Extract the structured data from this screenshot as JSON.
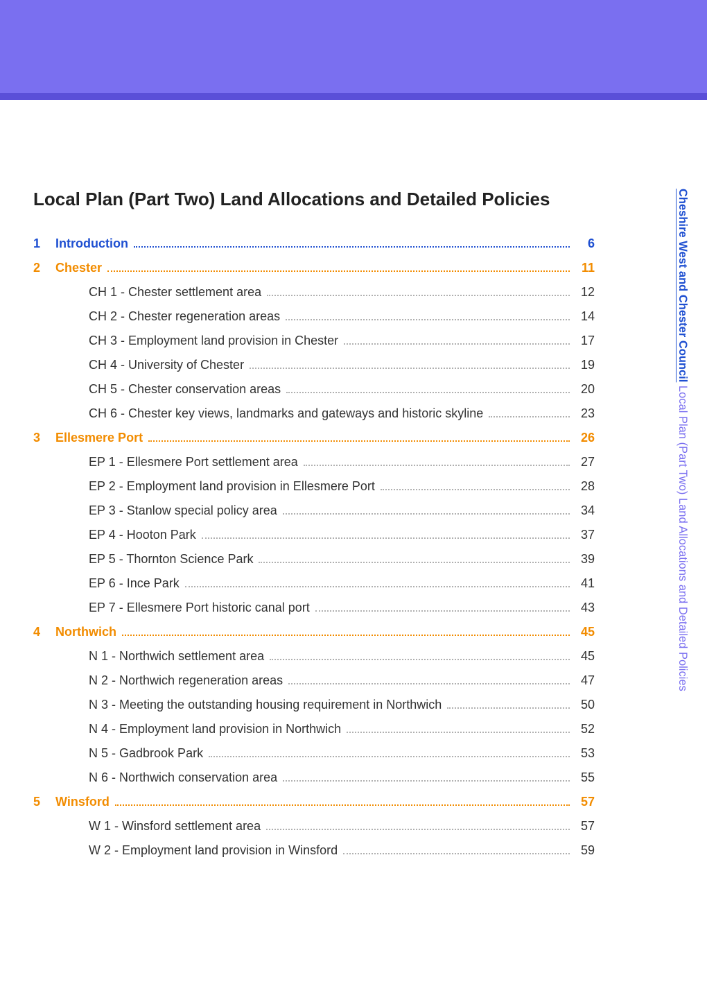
{
  "colors": {
    "header_bg": "#7a6ff0",
    "header_border": "#5a4fd8",
    "orange": "#f28c00",
    "blue": "#1e4fd1",
    "purple_text": "#7a6ff0",
    "body_text": "#333333"
  },
  "side_text": {
    "part1": "Cheshire West and Chester Council",
    "part2": " Local Plan (Part Two) Land Allocations and Detailed Policies"
  },
  "doc_title": "Local Plan (Part Two) Land Allocations and Detailed Policies",
  "toc": [
    {
      "type": "section",
      "style": "intro",
      "num": "1",
      "label": "Introduction",
      "page": "6"
    },
    {
      "type": "section",
      "num": "2",
      "label": "Chester",
      "page": "11"
    },
    {
      "type": "sub",
      "label": "CH 1 - Chester settlement area",
      "page": "12"
    },
    {
      "type": "sub",
      "label": "CH 2 - Chester regeneration areas",
      "page": "14"
    },
    {
      "type": "sub",
      "label": "CH 3 - Employment land provision in Chester",
      "page": "17"
    },
    {
      "type": "sub",
      "label": "CH 4 - University of Chester",
      "page": "19"
    },
    {
      "type": "sub",
      "label": "CH 5 - Chester conservation areas",
      "page": "20"
    },
    {
      "type": "sub",
      "label": "CH 6 - Chester key views, landmarks and gateways and historic skyline",
      "page": "23"
    },
    {
      "type": "section",
      "num": "3",
      "label": "Ellesmere Port",
      "page": "26"
    },
    {
      "type": "sub",
      "label": "EP 1 - Ellesmere Port settlement area",
      "page": "27"
    },
    {
      "type": "sub",
      "label": "EP 2 - Employment land provision in Ellesmere Port",
      "page": "28"
    },
    {
      "type": "sub",
      "label": "EP 3 - Stanlow special policy area",
      "page": "34"
    },
    {
      "type": "sub",
      "label": "EP 4 - Hooton Park",
      "page": "37"
    },
    {
      "type": "sub",
      "label": "EP 5 - Thornton Science Park",
      "page": "39"
    },
    {
      "type": "sub",
      "label": "EP 6 - Ince Park",
      "page": "41"
    },
    {
      "type": "sub",
      "label": "EP 7 - Ellesmere Port historic canal port",
      "page": "43"
    },
    {
      "type": "section",
      "num": "4",
      "label": "Northwich",
      "page": "45"
    },
    {
      "type": "sub",
      "label": "N 1 - Northwich settlement area",
      "page": "45"
    },
    {
      "type": "sub",
      "label": "N 2 - Northwich regeneration areas",
      "page": "47"
    },
    {
      "type": "sub",
      "label": "N 3 - Meeting the outstanding housing requirement in Northwich",
      "page": "50"
    },
    {
      "type": "sub",
      "label": "N 4 - Employment land provision in Northwich",
      "page": "52"
    },
    {
      "type": "sub",
      "label": "N 5 - Gadbrook Park",
      "page": "53"
    },
    {
      "type": "sub",
      "label": "N 6 - Northwich conservation area",
      "page": "55"
    },
    {
      "type": "section",
      "num": "5",
      "label": "Winsford",
      "page": "57"
    },
    {
      "type": "sub",
      "label": "W 1 - Winsford settlement area",
      "page": "57"
    },
    {
      "type": "sub",
      "label": "W 2 - Employment land provision in Winsford",
      "page": "59"
    }
  ]
}
